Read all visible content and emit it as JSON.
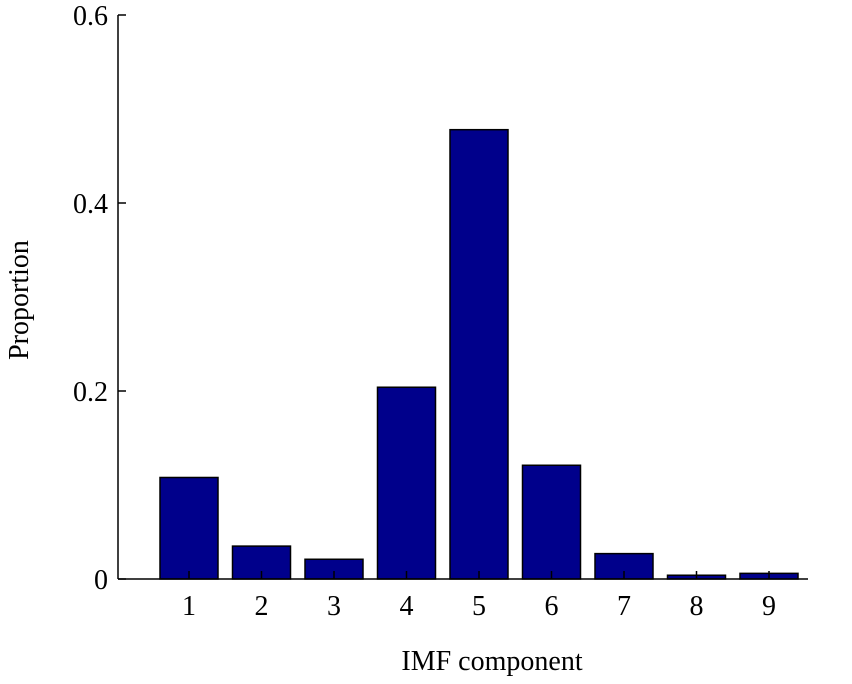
{
  "chart_data": {
    "type": "bar",
    "categories": [
      "1",
      "2",
      "3",
      "4",
      "5",
      "6",
      "7",
      "8",
      "9"
    ],
    "values": [
      0.108,
      0.035,
      0.021,
      0.204,
      0.478,
      0.121,
      0.027,
      0.004,
      0.006
    ],
    "title": "",
    "xlabel": "IMF component",
    "ylabel": "Proportion",
    "ylim": [
      0,
      0.6
    ],
    "yticks": [
      0,
      0.2,
      0.4,
      0.6
    ],
    "ytick_labels": [
      "0",
      "0.2",
      "0.4",
      "0.6"
    ],
    "grid": false,
    "legend": "none",
    "bar_color": "#00008B"
  }
}
